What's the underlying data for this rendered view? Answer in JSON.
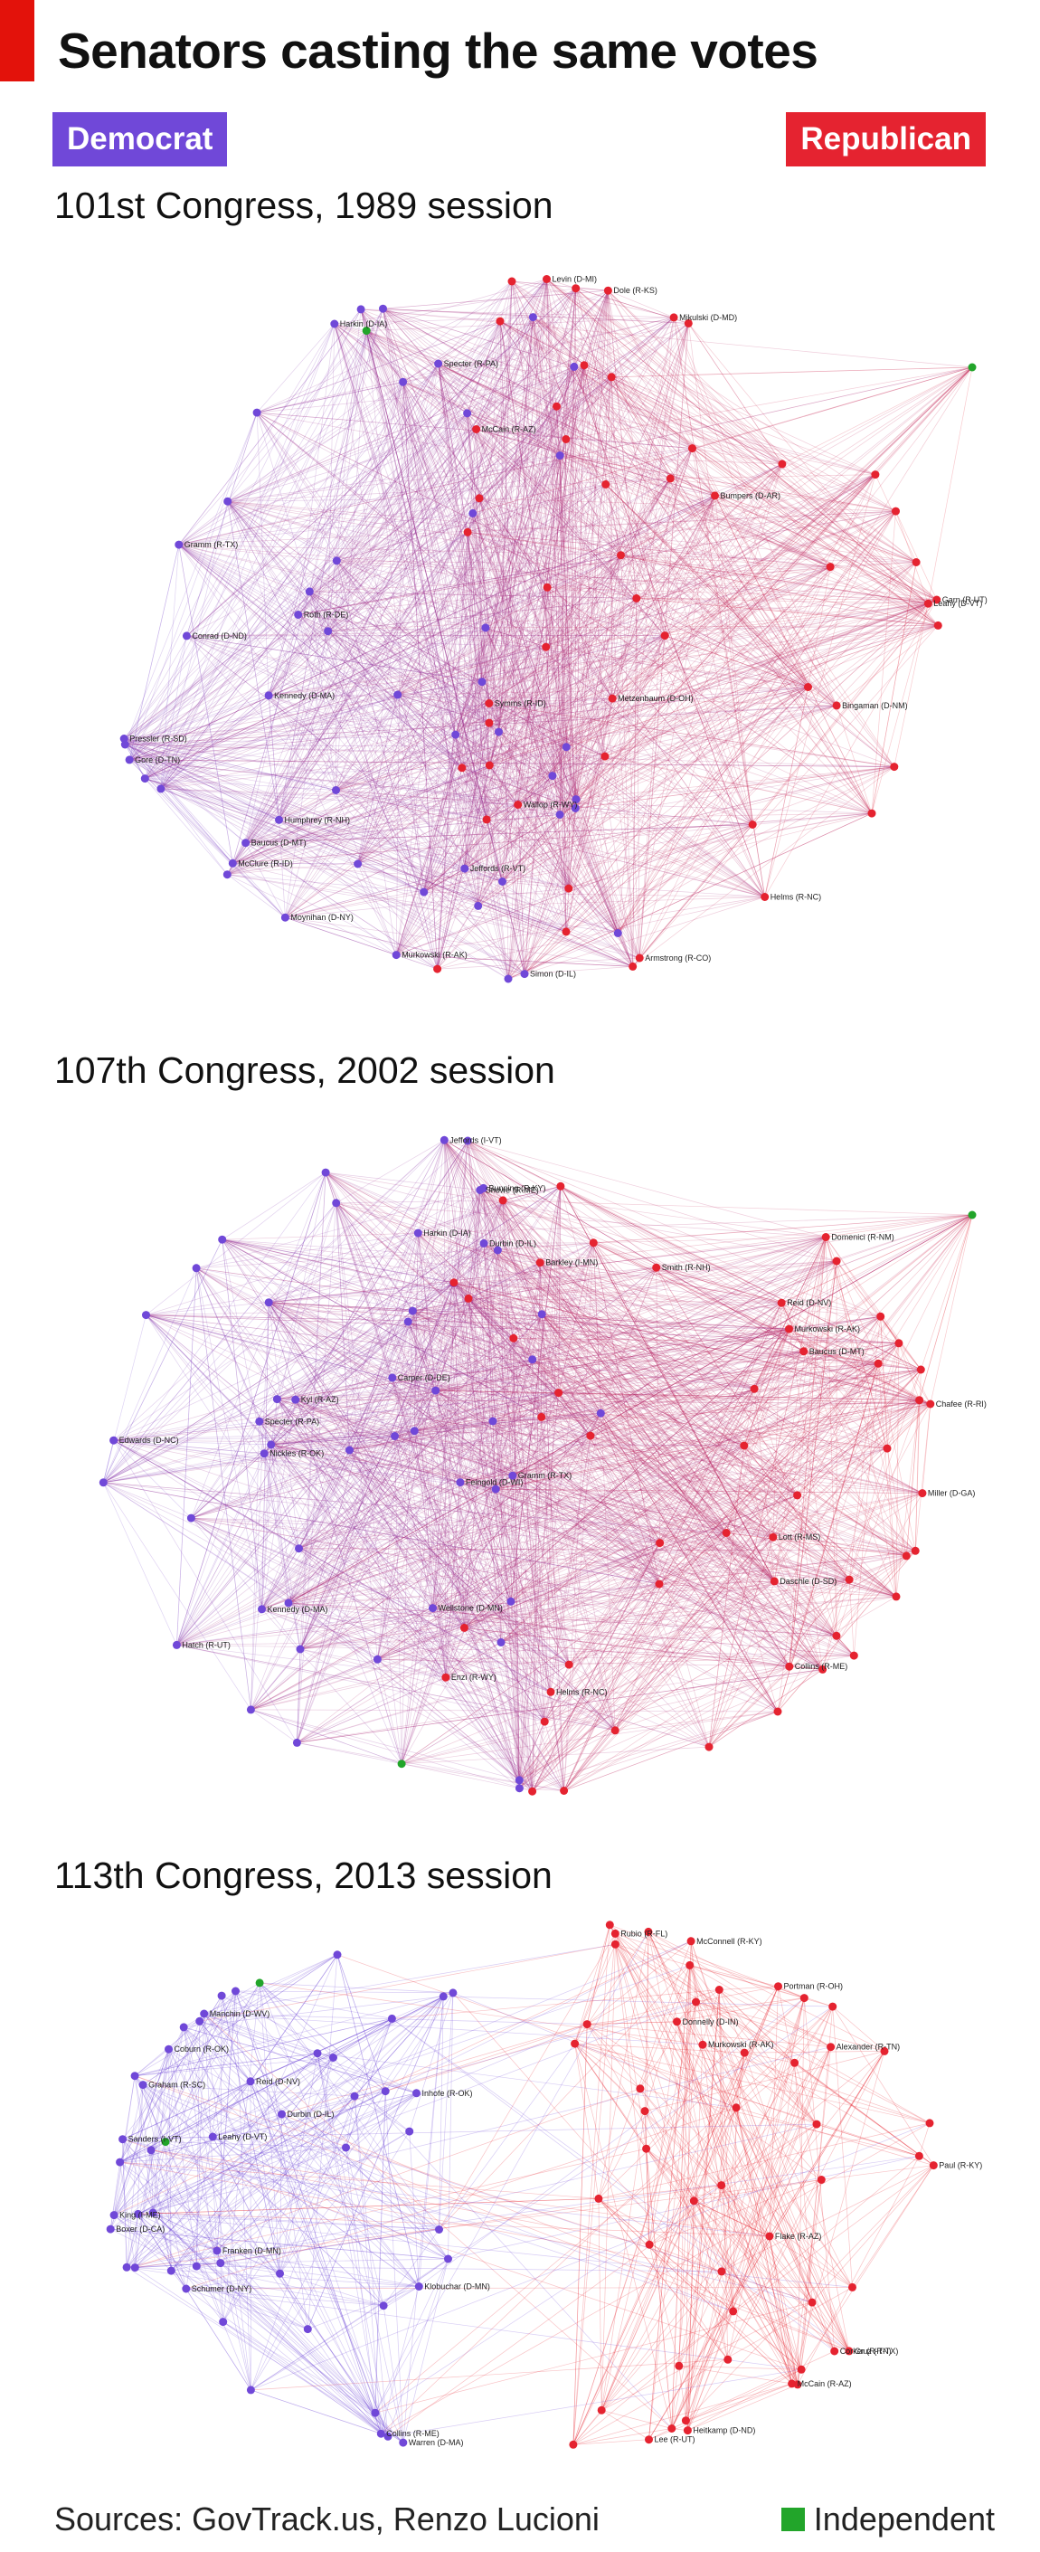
{
  "title": "Senators casting the same votes",
  "legend": {
    "democrat": {
      "label": "Democrat",
      "color": "#7048d8"
    },
    "republican": {
      "label": "Republican",
      "color": "#e52330"
    },
    "independent": {
      "label": "Independent",
      "color": "#22a52a"
    }
  },
  "sessions": [
    {
      "title": "101st Congress, 1989 session",
      "style": "spread",
      "node_labels": [
        "Gore (D-TN)",
        "Jeffords (R-VT)",
        "Moynihan (D-NY)",
        "Kennedy (D-MA)",
        "Specter (R-PA)",
        "Roth (R-DE)",
        "McClure (R-ID)",
        "Murkowski (R-AK)",
        "Metzenbaum (D-OH)",
        "Bumpers (D-AR)",
        "Dole (R-KS)",
        "McCain (R-AZ)",
        "Bingaman (D-NM)",
        "Helms (R-NC)",
        "Symms (R-ID)",
        "Simon (D-IL)",
        "Gramm (R-TX)",
        "Harkin (D-IA)",
        "Baucus (D-MT)",
        "Conrad (D-ND)",
        "Pressler (R-SD)",
        "Humphrey (R-NH)",
        "Armstrong (R-CO)",
        "Garn (R-UT)",
        "Wallop (R-WY)",
        "Mikulski (D-MD)",
        "Leahy (D-VT)",
        "Levin (D-MI)"
      ]
    },
    {
      "title": "107th Congress, 2002 session",
      "style": "spread",
      "node_labels": [
        "Harkin (D-IA)",
        "Edwards (D-NC)",
        "Durbin (D-IL)",
        "Carper (D-DE)",
        "Feingold (D-WI)",
        "Jeffords (I-VT)",
        "Kennedy (D-MA)",
        "Wellstone (D-MN)",
        "Reid (D-NV)",
        "Baucus (D-MT)",
        "Daschle (D-SD)",
        "Miller (D-GA)",
        "Helms (R-NC)",
        "Domenici (R-NM)",
        "Smith (R-NH)",
        "Specter (R-PA)",
        "Hatch (R-UT)",
        "Snowe (R-ME)",
        "Gramm (R-TX)",
        "Kyl (R-AZ)",
        "Nickles (R-OK)",
        "Bunning (R-KY)",
        "Lott (R-MS)",
        "Chafee (R-RI)",
        "Murkowski (R-AK)",
        "Enzi (R-WY)",
        "Collins (R-ME)",
        "Barkley (I-MN)"
      ]
    },
    {
      "title": "113th Congress, 2013 session",
      "style": "split",
      "node_labels": [
        "Sanders (I-VT)",
        "King (I-ME)",
        "Warren (D-MA)",
        "Schumer (D-NY)",
        "Durbin (D-IL)",
        "Reid (D-NV)",
        "Manchin (D-WV)",
        "Collins (R-ME)",
        "Murkowski (R-AK)",
        "McConnell (R-KY)",
        "Cruz (R-TX)",
        "Paul (R-KY)",
        "Rubio (R-FL)",
        "Lee (R-UT)",
        "McCain (R-AZ)",
        "Graham (R-SC)",
        "Boxer (D-CA)",
        "Leahy (D-VT)",
        "Franken (D-MN)",
        "Klobuchar (D-MN)",
        "Coburn (R-OK)",
        "Inhofe (R-OK)",
        "Corker (R-TN)",
        "Alexander (R-TN)",
        "Heitkamp (D-ND)",
        "Donnelly (D-IN)",
        "Portman (R-OH)",
        "Flake (R-AZ)"
      ]
    }
  ],
  "footer": {
    "sources": "Sources: GovTrack.us, Renzo Lucioni",
    "independent_label": "Independent"
  }
}
